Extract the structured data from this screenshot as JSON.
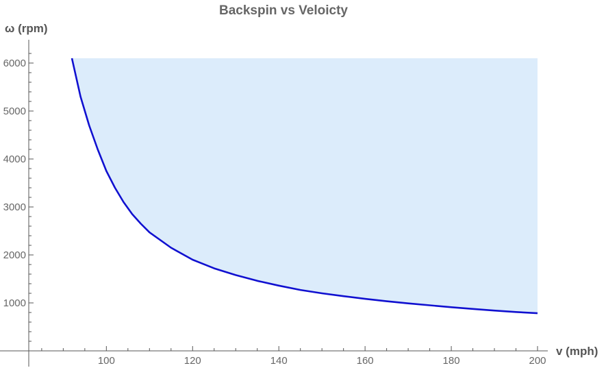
{
  "chart_data": {
    "type": "area",
    "title": "Backspin vs Veloicty",
    "xlabel": "v (mph)",
    "ylabel": "ω (rpm)",
    "xlim": [
      82,
      200
    ],
    "ylim": [
      0,
      6300
    ],
    "x_ticks": [
      100,
      120,
      140,
      160,
      180,
      200
    ],
    "y_ticks": [
      1000,
      2000,
      3000,
      4000,
      5000,
      6000
    ],
    "x_minor_step": 5,
    "y_minor_step": 200,
    "grid": false,
    "fill_upper": 6100,
    "colors": {
      "line": "#1010d0",
      "fill": "#dcecfb",
      "axis": "#555555",
      "text": "#666666"
    },
    "series": [
      {
        "x": [
          92,
          94,
          96,
          98,
          100,
          102,
          104,
          106,
          108,
          110,
          115,
          120,
          125,
          130,
          135,
          140,
          145,
          150,
          155,
          160,
          165,
          170,
          175,
          180,
          185,
          190,
          195,
          200
        ],
        "values": [
          6100,
          5300,
          4700,
          4200,
          3750,
          3400,
          3100,
          2850,
          2650,
          2470,
          2150,
          1900,
          1720,
          1580,
          1460,
          1360,
          1270,
          1200,
          1140,
          1085,
          1035,
          990,
          950,
          910,
          875,
          840,
          810,
          785
        ]
      }
    ]
  }
}
